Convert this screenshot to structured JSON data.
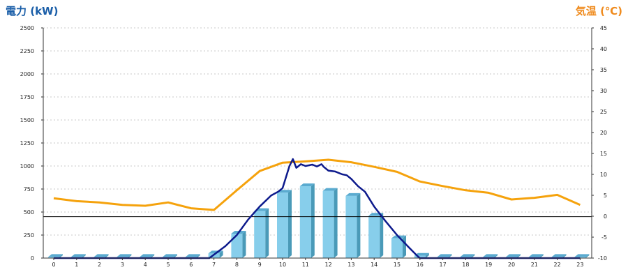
{
  "chart_data": {
    "type": "bar+line",
    "left_axis": {
      "title": "電力 (kW)",
      "color": "#1a5ea8",
      "ticks": [
        "0",
        "250",
        "500",
        "750",
        "1000",
        "1250",
        "1500",
        "1750",
        "2000",
        "2250",
        "2500"
      ],
      "ylim": [
        0,
        2500
      ]
    },
    "right_axis": {
      "title": "気温 (℃)",
      "color": "#ef8a1c",
      "ticks": [
        "-10",
        "-5",
        "0",
        "5",
        "10",
        "15",
        "20",
        "25",
        "30",
        "35",
        "40",
        "45"
      ],
      "ylim": [
        -10,
        45
      ]
    },
    "categories": [
      "0",
      "1",
      "2",
      "3",
      "4",
      "5",
      "6",
      "7",
      "8",
      "9",
      "10",
      "11",
      "12",
      "13",
      "14",
      "15",
      "16",
      "17",
      "18",
      "19",
      "20",
      "21",
      "22",
      "23"
    ],
    "grid": true,
    "bars": {
      "color": "#87ceeb",
      "values": [
        0,
        0,
        0,
        0,
        0,
        0,
        0,
        50,
        265,
        510,
        710,
        780,
        730,
        675,
        460,
        215,
        25,
        0,
        0,
        0,
        0,
        0,
        0,
        0
      ]
    },
    "temperature_line": {
      "color": "#f5a20c",
      "values": [
        4.3,
        3.6,
        3.3,
        2.7,
        2.5,
        3.3,
        1.9,
        1.5,
        6.2,
        10.8,
        12.8,
        13.1,
        13.5,
        12.9,
        11.8,
        10.6,
        8.3,
        7.2,
        6.2,
        5.6,
        4.0,
        4.4,
        5.1,
        2.7
      ]
    },
    "power_line": {
      "color": "#0d1a8c",
      "points": [
        [
          0,
          0
        ],
        [
          6.8,
          0
        ],
        [
          7.5,
          130
        ],
        [
          8,
          250
        ],
        [
          8.5,
          420
        ],
        [
          9,
          560
        ],
        [
          9.5,
          680
        ],
        [
          9.8,
          720
        ],
        [
          10,
          760
        ],
        [
          10.3,
          1000
        ],
        [
          10.45,
          1075
        ],
        [
          10.6,
          980
        ],
        [
          10.8,
          1020
        ],
        [
          11,
          1000
        ],
        [
          11.3,
          1015
        ],
        [
          11.5,
          995
        ],
        [
          11.7,
          1020
        ],
        [
          11.8,
          990
        ],
        [
          12,
          950
        ],
        [
          12.3,
          940
        ],
        [
          12.6,
          910
        ],
        [
          12.8,
          900
        ],
        [
          13,
          860
        ],
        [
          13.3,
          780
        ],
        [
          13.6,
          720
        ],
        [
          14,
          560
        ],
        [
          14.5,
          400
        ],
        [
          15,
          250
        ],
        [
          15.5,
          120
        ],
        [
          15.9,
          20
        ],
        [
          16,
          0
        ],
        [
          23,
          0
        ]
      ]
    },
    "reference_line": {
      "value": 450,
      "color": "#000000"
    }
  }
}
